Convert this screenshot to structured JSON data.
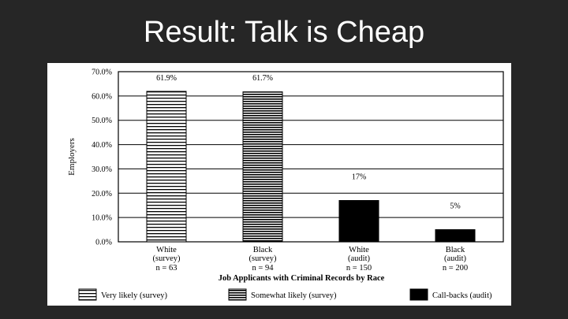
{
  "slide": {
    "title": "Result: Talk is Cheap"
  },
  "chart_data": {
    "type": "bar",
    "title": "",
    "ylabel": "Employers",
    "xlabel": "Job Applicants with Criminal Records by Race",
    "ylim": [
      0,
      70
    ],
    "y_ticks": [
      "0.0%",
      "10.0%",
      "20.0%",
      "30.0%",
      "40.0%",
      "50.0%",
      "60.0%",
      "70.0%"
    ],
    "grid": true,
    "categories": [
      {
        "line1": "White",
        "line2": "(survey)",
        "n": "n = 63"
      },
      {
        "line1": "Black",
        "line2": "(survey)",
        "n": "n = 94"
      },
      {
        "line1": "White",
        "line2": "(audit)",
        "n": "n = 150"
      },
      {
        "line1": "Black",
        "line2": "(audit)",
        "n": "n = 200"
      }
    ],
    "bars": [
      {
        "value": 61.9,
        "label": "61.9%",
        "segments": [
          {
            "series": 0,
            "value": 61.9
          }
        ]
      },
      {
        "value": 61.7,
        "label": "61.7%",
        "segments": [
          {
            "series": 1,
            "value": 61.7
          }
        ]
      },
      {
        "value": 17,
        "label": "17%",
        "segments": [
          {
            "series": 2,
            "value": 17
          }
        ]
      },
      {
        "value": 5,
        "label": "5%",
        "segments": [
          {
            "series": 2,
            "value": 5
          }
        ]
      }
    ],
    "series": [
      {
        "name": "Very likely (survey)",
        "pattern": "lines-thin"
      },
      {
        "name": "Somewhat likely (survey)",
        "pattern": "lines-dense"
      },
      {
        "name": "Call-backs (audit)",
        "pattern": "solid"
      }
    ],
    "legend_position": "bottom",
    "colors": {
      "ink": "#000000",
      "paper": "#ffffff",
      "gridline": "#000000"
    }
  }
}
